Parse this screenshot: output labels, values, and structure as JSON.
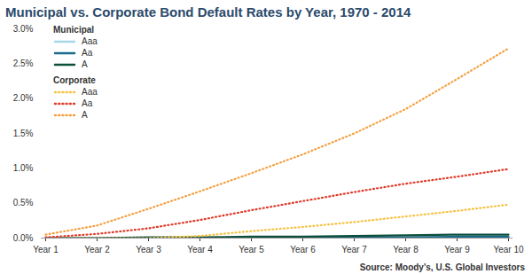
{
  "chart_data": {
    "type": "line",
    "title": "Municipal vs. Corporate Bond Default Rates by Year, 1970 - 2014",
    "source": "Source: Moody's, U.S. Global Investors",
    "categories": [
      "Year 1",
      "Year 2",
      "Year 3",
      "Year 4",
      "Year 5",
      "Year 6",
      "Year 7",
      "Year 8",
      "Year 9",
      "Year 10"
    ],
    "series": [
      {
        "group": "Municipal",
        "name": "Aaa",
        "color": "#a6d8e8",
        "line_style": "solid",
        "values": [
          0,
          0,
          0,
          0,
          0,
          0,
          0,
          0,
          0,
          0
        ]
      },
      {
        "group": "Municipal",
        "name": "Aa",
        "color": "#1a6a8a",
        "line_style": "solid",
        "values": [
          0,
          0,
          0,
          0,
          0.01,
          0.01,
          0.01,
          0.01,
          0.02,
          0.02
        ]
      },
      {
        "group": "Municipal",
        "name": "A",
        "color": "#0d4f3c",
        "line_style": "solid",
        "values": [
          0,
          0,
          0.01,
          0.01,
          0.02,
          0.02,
          0.03,
          0.04,
          0.05,
          0.05
        ]
      },
      {
        "group": "Corporate",
        "name": "Aaa",
        "color": "#f5c242",
        "line_style": "dotted",
        "values": [
          0,
          0,
          0,
          0.03,
          0.1,
          0.16,
          0.23,
          0.31,
          0.39,
          0.48
        ]
      },
      {
        "group": "Corporate",
        "name": "Aa",
        "color": "#e03a2a",
        "line_style": "dotted",
        "values": [
          0.01,
          0.06,
          0.14,
          0.26,
          0.4,
          0.53,
          0.66,
          0.78,
          0.88,
          0.99
        ]
      },
      {
        "group": "Corporate",
        "name": "A",
        "color": "#f5a040",
        "line_style": "dotted",
        "values": [
          0.05,
          0.18,
          0.42,
          0.67,
          0.93,
          1.2,
          1.5,
          1.85,
          2.28,
          2.72
        ]
      }
    ],
    "ylim": [
      0,
      3
    ],
    "yticks": [
      {
        "value": 0,
        "label": "0.0%"
      },
      {
        "value": 0.5,
        "label": "0.5%"
      },
      {
        "value": 1,
        "label": "1.0%"
      },
      {
        "value": 1.5,
        "label": "1.5%"
      },
      {
        "value": 2,
        "label": "2.0%"
      },
      {
        "value": 2.5,
        "label": "2.5%"
      },
      {
        "value": 3,
        "label": "3.0%"
      }
    ],
    "grid": false,
    "legend": "top-left"
  }
}
